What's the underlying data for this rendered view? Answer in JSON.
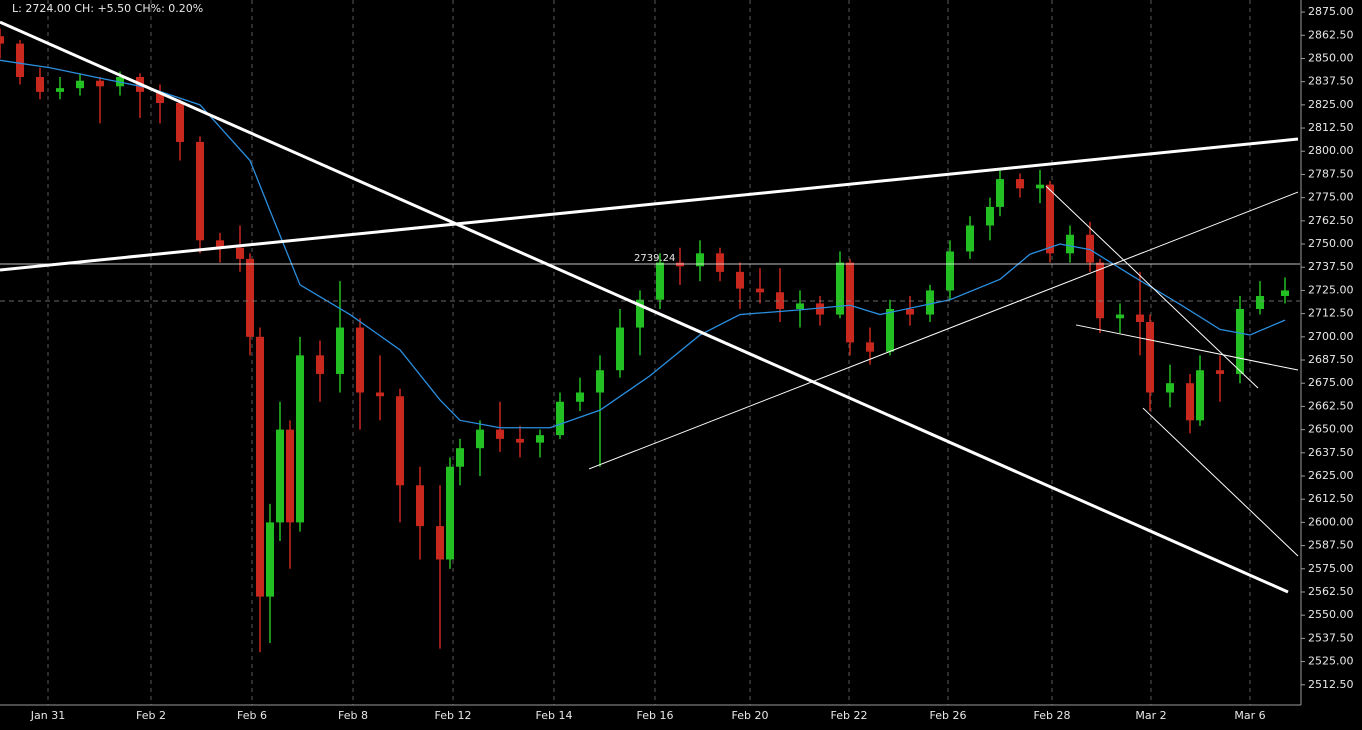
{
  "chart_data": {
    "type": "candlestick",
    "header": "L: 2724.00 CH: +5.50 CH%: 0.20%",
    "up_color": "#22c022",
    "down_color": "#c8281e",
    "ma_color": "#2a8fe0",
    "line_color": "#ffffff",
    "xlim": [
      -0.48,
      12.52
    ],
    "xticks": [
      {
        "value": 0,
        "label": "Jan 31"
      },
      {
        "value": 1.03,
        "label": "Feb 2"
      },
      {
        "value": 2.04,
        "label": "Feb 6"
      },
      {
        "value": 3.05,
        "label": "Feb 8"
      },
      {
        "value": 4.05,
        "label": "Feb 12"
      },
      {
        "value": 5.06,
        "label": "Feb 14"
      },
      {
        "value": 6.07,
        "label": "Feb 16"
      },
      {
        "value": 7.02,
        "label": "Feb 20"
      },
      {
        "value": 8.01,
        "label": "Feb 22"
      },
      {
        "value": 9.0,
        "label": "Feb 26"
      },
      {
        "value": 10.04,
        "label": "Feb 28"
      },
      {
        "value": 11.03,
        "label": "Mar 2"
      },
      {
        "value": 12.02,
        "label": "Mar 6"
      }
    ],
    "ylim": [
      2501.6,
      2881.5
    ],
    "yticks": [
      {
        "value": 2512.5,
        "label": "2512.50"
      },
      {
        "value": 2525,
        "label": "2525.00"
      },
      {
        "value": 2537.5,
        "label": "2537.50"
      },
      {
        "value": 2550,
        "label": "2550.00"
      },
      {
        "value": 2562.5,
        "label": "2562.50"
      },
      {
        "value": 2575,
        "label": "2575.00"
      },
      {
        "value": 2587.5,
        "label": "2587.50"
      },
      {
        "value": 2600,
        "label": "2600.00"
      },
      {
        "value": 2612.5,
        "label": "2612.50"
      },
      {
        "value": 2625,
        "label": "2625.00"
      },
      {
        "value": 2637.5,
        "label": "2637.50"
      },
      {
        "value": 2650,
        "label": "2650.00"
      },
      {
        "value": 2662.5,
        "label": "2662.50"
      },
      {
        "value": 2675,
        "label": "2675.00"
      },
      {
        "value": 2687.5,
        "label": "2687.50"
      },
      {
        "value": 2700,
        "label": "2700.00"
      },
      {
        "value": 2712.5,
        "label": "2712.50"
      },
      {
        "value": 2725,
        "label": "2725.00"
      },
      {
        "value": 2737.5,
        "label": "2737.50"
      },
      {
        "value": 2750,
        "label": "2750.00"
      },
      {
        "value": 2762.5,
        "label": "2762.50"
      },
      {
        "value": 2775,
        "label": "2775.00"
      },
      {
        "value": 2787.5,
        "label": "2787.50"
      },
      {
        "value": 2800,
        "label": "2800.00"
      },
      {
        "value": 2812.5,
        "label": "2812.50"
      },
      {
        "value": 2825,
        "label": "2825.00"
      },
      {
        "value": 2837.5,
        "label": "2837.50"
      },
      {
        "value": 2850,
        "label": "2850.00"
      },
      {
        "value": 2862.5,
        "label": "2862.50"
      },
      {
        "value": 2875,
        "label": "2875.00"
      }
    ],
    "x": [
      -0.48,
      -0.28,
      -0.08,
      0.12,
      0.32,
      0.52,
      0.72,
      0.92,
      1.12,
      1.32,
      1.52,
      1.72,
      1.92,
      2.02,
      2.12,
      2.22,
      2.32,
      2.42,
      2.52,
      2.72,
      2.92,
      3.12,
      3.32,
      3.52,
      3.72,
      3.92,
      4.02,
      4.12,
      4.32,
      4.52,
      4.72,
      4.92,
      5.12,
      5.32,
      5.52,
      5.72,
      5.92,
      6.12,
      6.32,
      6.52,
      6.72,
      6.92,
      7.12,
      7.32,
      7.52,
      7.72,
      7.92,
      8.02,
      8.22,
      8.42,
      8.62,
      8.82,
      9.02,
      9.22,
      9.42,
      9.52,
      9.72,
      9.92,
      10.02,
      10.22,
      10.42,
      10.52,
      10.72,
      10.92,
      11.02,
      11.22,
      11.42,
      11.52,
      11.72,
      11.92,
      12.12,
      12.37
    ],
    "open": [
      2862,
      2858,
      2840,
      2832,
      2834,
      2838,
      2835,
      2840,
      2832,
      2826,
      2805,
      2752,
      2748,
      2742,
      2700,
      2560,
      2600,
      2650,
      2600,
      2690,
      2680,
      2705,
      2670,
      2668,
      2620,
      2598,
      2580,
      2630,
      2640,
      2650,
      2645,
      2643,
      2647,
      2665,
      2670,
      2682,
      2705,
      2720,
      2740,
      2738,
      2745,
      2735,
      2726,
      2724,
      2715,
      2718,
      2712,
      2740,
      2697,
      2692,
      2715,
      2712,
      2725,
      2746,
      2760,
      2770,
      2785,
      2780,
      2782,
      2745,
      2755,
      2740,
      2710,
      2712,
      2708,
      2670,
      2675,
      2655,
      2682,
      2680,
      2715,
      2722
    ],
    "high": [
      2866,
      2860,
      2845,
      2840,
      2842,
      2840,
      2843,
      2842,
      2836,
      2828,
      2808,
      2756,
      2760,
      2745,
      2705,
      2610,
      2665,
      2655,
      2700,
      2698,
      2730,
      2710,
      2690,
      2672,
      2630,
      2620,
      2635,
      2645,
      2655,
      2665,
      2652,
      2650,
      2670,
      2678,
      2690,
      2715,
      2725,
      2745,
      2748,
      2752,
      2748,
      2740,
      2737,
      2737,
      2725,
      2722,
      2746,
      2742,
      2705,
      2720,
      2722,
      2728,
      2752,
      2765,
      2775,
      2790,
      2788,
      2790,
      2784,
      2760,
      2762,
      2742,
      2718,
      2735,
      2712,
      2685,
      2680,
      2690,
      2690,
      2722,
      2730,
      2732
    ],
    "low": [
      2850,
      2836,
      2828,
      2828,
      2830,
      2815,
      2830,
      2818,
      2815,
      2795,
      2745,
      2740,
      2735,
      2690,
      2530,
      2535,
      2590,
      2575,
      2595,
      2665,
      2670,
      2650,
      2655,
      2600,
      2580,
      2532,
      2575,
      2620,
      2625,
      2638,
      2635,
      2635,
      2645,
      2660,
      2630,
      2678,
      2690,
      2715,
      2728,
      2730,
      2730,
      2715,
      2718,
      2708,
      2705,
      2706,
      2710,
      2690,
      2685,
      2690,
      2706,
      2708,
      2720,
      2742,
      2752,
      2765,
      2775,
      2772,
      2740,
      2740,
      2735,
      2702,
      2702,
      2690,
      2660,
      2662,
      2648,
      2652,
      2665,
      2675,
      2712,
      2718
    ],
    "close": [
      2858,
      2840,
      2832,
      2834,
      2838,
      2835,
      2840,
      2832,
      2826,
      2805,
      2752,
      2748,
      2742,
      2700,
      2560,
      2600,
      2650,
      2600,
      2690,
      2680,
      2705,
      2670,
      2668,
      2620,
      2598,
      2580,
      2630,
      2640,
      2650,
      2645,
      2643,
      2647,
      2665,
      2670,
      2682,
      2705,
      2720,
      2740,
      2738,
      2745,
      2735,
      2726,
      2724,
      2715,
      2718,
      2712,
      2740,
      2697,
      2692,
      2715,
      2712,
      2725,
      2746,
      2760,
      2770,
      2785,
      2780,
      2782,
      2745,
      2755,
      2740,
      2710,
      2712,
      2708,
      2670,
      2675,
      2655,
      2682,
      2680,
      2715,
      2722,
      2725
    ],
    "ma": {
      "x": [
        -0.48,
        0.02,
        0.52,
        1.02,
        1.52,
        2.02,
        2.22,
        2.52,
        3.02,
        3.52,
        3.92,
        4.12,
        4.52,
        5.02,
        5.52,
        6.02,
        6.52,
        6.92,
        7.52,
        8.02,
        8.32,
        9.02,
        9.52,
        9.82,
        10.12,
        10.42,
        10.82,
        11.32,
        11.72,
        12.02,
        12.37
      ],
      "values": [
        2849,
        2845,
        2839.4,
        2834,
        2825,
        2795,
        2768,
        2728,
        2712,
        2693,
        2666,
        2655,
        2651,
        2651,
        2660.5,
        2679,
        2701,
        2712,
        2714.5,
        2717,
        2712,
        2720,
        2731,
        2744.5,
        2750,
        2747,
        2733.6,
        2717.5,
        2704,
        2701,
        2709
      ]
    },
    "price_line": 2739.24,
    "last_line": 2719.3,
    "trendlines": [
      {
        "x": [
          -0.48,
          12.4
        ],
        "y": [
          2869.6,
          2562.5
        ],
        "width": 3
      },
      {
        "x": [
          -0.48,
          12.5
        ],
        "y": [
          2736,
          2806.6
        ],
        "width": 3
      },
      {
        "x": [
          5.41,
          12.5
        ],
        "y": [
          2628.8,
          2778
        ],
        "width": 1
      },
      {
        "x": [
          9.98,
          12.1
        ],
        "y": [
          2781.2,
          2672.4
        ],
        "width": 1
      },
      {
        "x": [
          10.95,
          12.5
        ],
        "y": [
          2661.6,
          2581.9
        ],
        "width": 1
      },
      {
        "x": [
          10.28,
          12.5
        ],
        "y": [
          2706.4,
          2682.1
        ],
        "width": 1
      }
    ]
  }
}
